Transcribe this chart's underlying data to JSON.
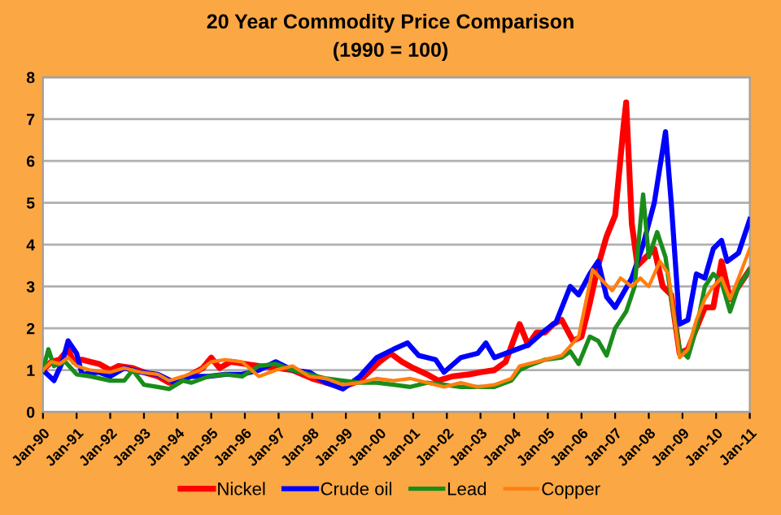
{
  "chart_data": {
    "type": "line",
    "title": "20 Year Commodity Price Comparison",
    "subtitle": "(1990 = 100)",
    "ylim": [
      0,
      8
    ],
    "yticks": [
      0,
      1,
      2,
      3,
      4,
      5,
      6,
      7,
      8
    ],
    "xlim": [
      "1990-01",
      "2011-01"
    ],
    "xticks": [
      {
        "value": "1990-01",
        "label": "Jan-90"
      },
      {
        "value": "1991-01",
        "label": "Jan-91"
      },
      {
        "value": "1992-01",
        "label": "Jan-92"
      },
      {
        "value": "1993-01",
        "label": "Jan-93"
      },
      {
        "value": "1994-01",
        "label": "Jan-94"
      },
      {
        "value": "1995-01",
        "label": "Jan-95"
      },
      {
        "value": "1996-01",
        "label": "Jan-96"
      },
      {
        "value": "1997-01",
        "label": "Jan-97"
      },
      {
        "value": "1998-01",
        "label": "Jan-98"
      },
      {
        "value": "1999-01",
        "label": "Jan-99"
      },
      {
        "value": "2000-01",
        "label": "Jan-00"
      },
      {
        "value": "2001-01",
        "label": "Jan-01"
      },
      {
        "value": "2002-01",
        "label": "Jan-02"
      },
      {
        "value": "2003-01",
        "label": "Jan-03"
      },
      {
        "value": "2004-01",
        "label": "Jan-04"
      },
      {
        "value": "2005-01",
        "label": "Jan-05"
      },
      {
        "value": "2006-01",
        "label": "Jan-06"
      },
      {
        "value": "2007-01",
        "label": "Jan-07"
      },
      {
        "value": "2008-01",
        "label": "Jan-08"
      },
      {
        "value": "2009-01",
        "label": "Jan-09"
      },
      {
        "value": "2010-01",
        "label": "Jan-10"
      },
      {
        "value": "2011-01",
        "label": "Jan-11"
      }
    ],
    "grid": "y",
    "legend": "bottom",
    "marker": "none",
    "line_style": "solid",
    "series": [
      {
        "name": "Nickel",
        "color": "#ff0000",
        "x": [
          "1990-01",
          "1990-04",
          "1990-07",
          "1990-10",
          "1990-12",
          "1991-03",
          "1991-06",
          "1991-09",
          "1992-01",
          "1992-04",
          "1992-09",
          "1993-01",
          "1993-06",
          "1993-10",
          "1994-01",
          "1994-06",
          "1994-10",
          "1995-01",
          "1995-04",
          "1995-08",
          "1996-01",
          "1996-06",
          "1997-01",
          "1997-06",
          "1998-01",
          "1998-06",
          "1998-12",
          "1999-06",
          "2000-01",
          "2000-05",
          "2000-09",
          "2001-01",
          "2001-06",
          "2001-10",
          "2002-03",
          "2002-09",
          "2003-01",
          "2003-06",
          "2003-10",
          "2004-01",
          "2004-03",
          "2004-06",
          "2004-09",
          "2004-12",
          "2005-03",
          "2005-06",
          "2005-10",
          "2006-01",
          "2006-04",
          "2006-07",
          "2006-10",
          "2007-01",
          "2007-04",
          "2007-05",
          "2007-07",
          "2007-09",
          "2007-12",
          "2008-03",
          "2008-06",
          "2008-09",
          "2008-12",
          "2009-03",
          "2009-06",
          "2009-09",
          "2009-12",
          "2010-03",
          "2010-06",
          "2010-09",
          "2011-01"
        ],
        "values": [
          1.0,
          1.2,
          1.25,
          1.5,
          1.2,
          1.25,
          1.2,
          1.15,
          1.0,
          1.1,
          1.05,
          0.95,
          0.85,
          0.7,
          0.7,
          0.9,
          1.05,
          1.3,
          1.05,
          1.2,
          1.15,
          1.1,
          1.05,
          1.0,
          0.8,
          0.7,
          0.6,
          0.75,
          1.2,
          1.4,
          1.2,
          1.05,
          0.9,
          0.75,
          0.85,
          0.9,
          0.95,
          1.0,
          1.2,
          1.75,
          2.1,
          1.6,
          1.9,
          1.9,
          2.1,
          2.2,
          1.7,
          1.8,
          2.6,
          3.5,
          4.2,
          4.7,
          6.8,
          7.4,
          4.5,
          3.5,
          3.7,
          3.9,
          3.0,
          2.8,
          1.4,
          1.5,
          2.0,
          2.5,
          2.5,
          3.6,
          2.7,
          3.0,
          3.4
        ]
      },
      {
        "name": "Crude oil",
        "color": "#0000ff",
        "x": [
          "1990-01",
          "1990-05",
          "1990-08",
          "1990-10",
          "1991-01",
          "1991-03",
          "1991-09",
          "1992-01",
          "1992-06",
          "1992-12",
          "1993-06",
          "1993-12",
          "1994-06",
          "1994-12",
          "1995-06",
          "1995-12",
          "1996-06",
          "1996-12",
          "1997-06",
          "1997-12",
          "1998-06",
          "1998-12",
          "1999-06",
          "1999-12",
          "2000-06",
          "2000-11",
          "2001-03",
          "2001-09",
          "2001-12",
          "2002-06",
          "2002-12",
          "2003-03",
          "2003-06",
          "2003-12",
          "2004-06",
          "2004-12",
          "2005-04",
          "2005-09",
          "2005-12",
          "2006-04",
          "2006-07",
          "2006-10",
          "2007-01",
          "2007-07",
          "2007-11",
          "2008-03",
          "2008-07",
          "2008-09",
          "2008-12",
          "2009-03",
          "2009-06",
          "2009-09",
          "2009-12",
          "2010-03",
          "2010-05",
          "2010-09",
          "2011-01"
        ],
        "values": [
          1.0,
          0.75,
          1.2,
          1.7,
          1.4,
          0.9,
          0.95,
          0.85,
          1.05,
          0.95,
          0.9,
          0.7,
          0.85,
          0.85,
          0.9,
          0.9,
          1.0,
          1.2,
          1.0,
          0.95,
          0.7,
          0.55,
          0.85,
          1.3,
          1.5,
          1.65,
          1.35,
          1.25,
          0.95,
          1.3,
          1.4,
          1.65,
          1.3,
          1.45,
          1.6,
          1.95,
          2.15,
          3.0,
          2.8,
          3.3,
          3.6,
          2.75,
          2.5,
          3.2,
          4.0,
          5.0,
          6.7,
          5.0,
          2.1,
          2.2,
          3.3,
          3.2,
          3.9,
          4.1,
          3.6,
          3.8,
          4.6
        ]
      },
      {
        "name": "Lead",
        "color": "#1a8c1a",
        "x": [
          "1990-01",
          "1990-03",
          "1990-05",
          "1990-09",
          "1991-01",
          "1991-06",
          "1992-01",
          "1992-06",
          "1992-09",
          "1993-01",
          "1993-06",
          "1993-10",
          "1994-03",
          "1994-06",
          "1994-12",
          "1995-06",
          "1995-12",
          "1996-06",
          "1996-12",
          "1997-06",
          "1997-12",
          "1998-06",
          "1998-12",
          "1999-06",
          "1999-12",
          "2000-06",
          "2000-12",
          "2001-06",
          "2001-12",
          "2002-06",
          "2002-12",
          "2003-06",
          "2003-12",
          "2004-03",
          "2004-06",
          "2004-12",
          "2005-06",
          "2005-09",
          "2005-12",
          "2006-04",
          "2006-07",
          "2006-10",
          "2007-01",
          "2007-05",
          "2007-08",
          "2007-10",
          "2007-11",
          "2008-01",
          "2008-04",
          "2008-07",
          "2008-09",
          "2008-12",
          "2009-03",
          "2009-06",
          "2009-09",
          "2009-12",
          "2010-03",
          "2010-06",
          "2010-09",
          "2011-01"
        ],
        "values": [
          1.0,
          1.5,
          1.1,
          1.2,
          0.9,
          0.85,
          0.75,
          0.75,
          1.0,
          0.65,
          0.6,
          0.55,
          0.75,
          0.7,
          0.85,
          0.9,
          0.85,
          1.1,
          1.15,
          1.0,
          0.9,
          0.8,
          0.75,
          0.7,
          0.7,
          0.65,
          0.6,
          0.7,
          0.65,
          0.6,
          0.6,
          0.6,
          0.75,
          1.0,
          1.1,
          1.25,
          1.3,
          1.45,
          1.15,
          1.8,
          1.7,
          1.35,
          2.0,
          2.4,
          3.0,
          4.5,
          5.2,
          3.7,
          4.3,
          3.7,
          2.7,
          1.5,
          1.3,
          2.0,
          3.0,
          3.3,
          3.1,
          2.4,
          3.0,
          3.4
        ]
      },
      {
        "name": "Copper",
        "color": "#ff7f0e",
        "x": [
          "1990-01",
          "1990-04",
          "1990-07",
          "1990-10",
          "1991-01",
          "1991-06",
          "1992-01",
          "1992-06",
          "1992-12",
          "1993-06",
          "1993-10",
          "1994-03",
          "1994-09",
          "1995-01",
          "1995-06",
          "1995-12",
          "1996-06",
          "1996-12",
          "1997-06",
          "1997-12",
          "1998-06",
          "1998-12",
          "1999-06",
          "1999-12",
          "2000-06",
          "2000-12",
          "2001-06",
          "2001-12",
          "2002-06",
          "2002-12",
          "2003-06",
          "2003-12",
          "2004-03",
          "2004-09",
          "2004-12",
          "2005-06",
          "2005-12",
          "2006-05",
          "2006-09",
          "2006-12",
          "2007-03",
          "2007-07",
          "2007-10",
          "2008-01",
          "2008-05",
          "2008-08",
          "2008-12",
          "2009-03",
          "2009-06",
          "2009-09",
          "2009-12",
          "2010-03",
          "2010-06",
          "2010-09",
          "2011-01"
        ],
        "values": [
          1.0,
          1.2,
          1.15,
          1.3,
          1.1,
          1.0,
          0.95,
          1.05,
          0.95,
          0.9,
          0.75,
          0.85,
          1.0,
          1.2,
          1.25,
          1.2,
          0.85,
          1.0,
          1.1,
          0.85,
          0.8,
          0.65,
          0.7,
          0.8,
          0.75,
          0.8,
          0.7,
          0.6,
          0.7,
          0.6,
          0.65,
          0.8,
          1.1,
          1.2,
          1.25,
          1.35,
          1.8,
          3.4,
          3.1,
          2.9,
          3.2,
          3.0,
          3.2,
          3.0,
          3.6,
          3.3,
          1.3,
          1.5,
          2.2,
          2.7,
          3.0,
          3.2,
          2.7,
          3.2,
          3.9
        ]
      }
    ]
  }
}
